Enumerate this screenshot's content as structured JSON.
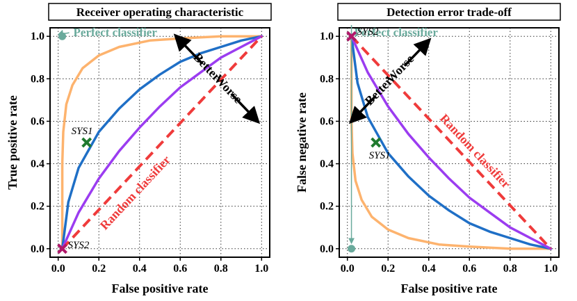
{
  "colors": {
    "orange": "#fdb36e",
    "blue": "#1f6fc6",
    "purple": "#9b3cf0",
    "random": "#ef3b3b",
    "perfect": "#6aaa9c",
    "sys1": "#1f7a2e",
    "sys2": "#b0186a",
    "arrow": "#000000"
  },
  "chart_data": [
    {
      "type": "line",
      "title": "Receiver operating characteristic",
      "xlabel": "False positive rate",
      "ylabel": "True positive rate",
      "xlim": [
        -0.04,
        1.04
      ],
      "ylim": [
        -0.04,
        1.04
      ],
      "xticks": [
        "0.0",
        "0.2",
        "0.4",
        "0.6",
        "0.8",
        "1.0"
      ],
      "yticks": [
        "0.0",
        "0.2",
        "0.4",
        "0.6",
        "0.8",
        "1.0"
      ],
      "grid": true,
      "series": [
        {
          "name": "orange",
          "color": "orange",
          "x": [
            0.02,
            0.02,
            0.025,
            0.04,
            0.07,
            0.12,
            0.2,
            0.3,
            0.45,
            0.6,
            0.8,
            1.0
          ],
          "y": [
            0.0,
            0.4,
            0.55,
            0.68,
            0.77,
            0.85,
            0.91,
            0.95,
            0.98,
            0.99,
            1.0,
            1.0
          ]
        },
        {
          "name": "blue",
          "color": "blue",
          "x": [
            0.02,
            0.05,
            0.1,
            0.2,
            0.3,
            0.4,
            0.5,
            0.6,
            0.7,
            0.8,
            0.9,
            1.0
          ],
          "y": [
            0.0,
            0.22,
            0.38,
            0.55,
            0.66,
            0.75,
            0.82,
            0.88,
            0.92,
            0.95,
            0.98,
            1.0
          ]
        },
        {
          "name": "purple",
          "color": "purple",
          "x": [
            0.02,
            0.1,
            0.2,
            0.3,
            0.4,
            0.5,
            0.6,
            0.7,
            0.8,
            0.9,
            1.0
          ],
          "y": [
            0.0,
            0.17,
            0.33,
            0.46,
            0.57,
            0.67,
            0.76,
            0.83,
            0.9,
            0.95,
            1.0
          ]
        },
        {
          "name": "random",
          "color": "random",
          "dashed": true,
          "x": [
            0.02,
            1.0
          ],
          "y": [
            0.0,
            1.0
          ]
        }
      ],
      "points": [
        {
          "name": "perfect",
          "shape": "circle",
          "color": "perfect",
          "x": 0.02,
          "y": 1.0
        },
        {
          "name": "sys1",
          "shape": "x",
          "color": "sys1",
          "x": 0.14,
          "y": 0.5
        },
        {
          "name": "sys2",
          "shape": "x",
          "color": "sys2",
          "x": 0.02,
          "y": 0.0
        }
      ],
      "annotations": {
        "perfect": "Perfect classifier",
        "random": "Random classifier",
        "better": "Better",
        "worse": "Worse",
        "sys1": "SYS1",
        "sys2": "SYS2"
      }
    },
    {
      "type": "line",
      "title": "Detection error trade-off",
      "xlabel": "False positive rate",
      "ylabel": "False negative rate",
      "xlim": [
        -0.04,
        1.04
      ],
      "ylim": [
        -0.04,
        1.04
      ],
      "xticks": [
        "0.0",
        "0.2",
        "0.4",
        "0.6",
        "0.8",
        "1.0"
      ],
      "yticks": [
        "0.0",
        "0.2",
        "0.4",
        "0.6",
        "0.8",
        "1.0"
      ],
      "grid": true,
      "series": [
        {
          "name": "orange",
          "color": "orange",
          "x": [
            0.02,
            0.02,
            0.025,
            0.04,
            0.07,
            0.12,
            0.2,
            0.3,
            0.45,
            0.6,
            0.8,
            1.0
          ],
          "y": [
            1.0,
            0.6,
            0.45,
            0.32,
            0.23,
            0.15,
            0.09,
            0.05,
            0.02,
            0.01,
            0.0,
            0.0
          ]
        },
        {
          "name": "blue",
          "color": "blue",
          "x": [
            0.02,
            0.05,
            0.1,
            0.2,
            0.3,
            0.4,
            0.5,
            0.6,
            0.7,
            0.8,
            0.9,
            1.0
          ],
          "y": [
            1.0,
            0.78,
            0.62,
            0.45,
            0.34,
            0.25,
            0.18,
            0.12,
            0.08,
            0.05,
            0.02,
            0.0
          ]
        },
        {
          "name": "purple",
          "color": "purple",
          "x": [
            0.02,
            0.1,
            0.2,
            0.3,
            0.4,
            0.5,
            0.6,
            0.7,
            0.8,
            0.9,
            1.0
          ],
          "y": [
            1.0,
            0.83,
            0.67,
            0.54,
            0.43,
            0.33,
            0.24,
            0.17,
            0.1,
            0.05,
            0.0
          ]
        },
        {
          "name": "random",
          "color": "random",
          "dashed": true,
          "x": [
            0.02,
            1.0
          ],
          "y": [
            1.0,
            0.0
          ]
        }
      ],
      "points": [
        {
          "name": "perfect",
          "shape": "circle",
          "color": "perfect",
          "x": 0.02,
          "y": 0.0
        },
        {
          "name": "sys1",
          "shape": "x",
          "color": "sys1",
          "x": 0.14,
          "y": 0.5
        },
        {
          "name": "sys2",
          "shape": "x",
          "color": "sys2",
          "x": 0.02,
          "y": 1.0
        }
      ],
      "annotations": {
        "perfect": "Perfect classifier",
        "random": "Random classifier",
        "better": "Better",
        "worse": "Worse",
        "sys1": "SYS1",
        "sys2": "SYS2"
      }
    }
  ]
}
